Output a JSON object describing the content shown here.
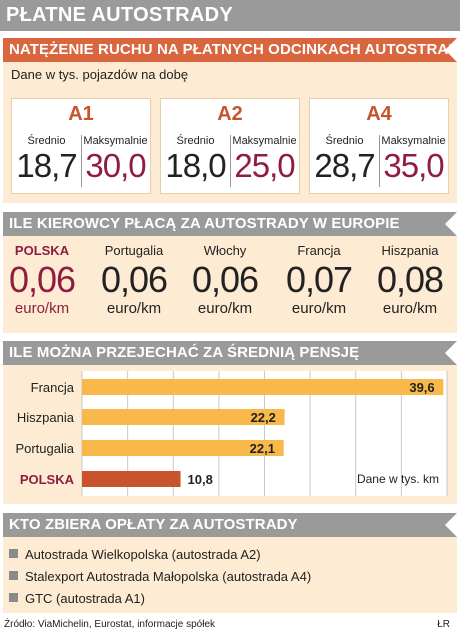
{
  "title": "PŁATNE AUTOSTRADY",
  "traffic": {
    "header": "NATĘŻENIE RUCHU NA PŁATNYCH ODCINKACH AUTOSTRAD",
    "subtitle": "Dane w tys. pojazdów na dobę",
    "avg_label": "Średnio",
    "max_label": "Maksymalnie",
    "roads": [
      {
        "name": "A1",
        "avg": "18,7",
        "max": "30,0"
      },
      {
        "name": "A2",
        "avg": "18,0",
        "max": "25,0"
      },
      {
        "name": "A4",
        "avg": "28,7",
        "max": "35,0"
      }
    ]
  },
  "prices": {
    "header": "ILE KIEROWCY PŁACĄ ZA AUTOSTRADY W EUROPIE",
    "unit": "euro/km",
    "countries": [
      {
        "name": "POLSKA",
        "price": "0,06"
      },
      {
        "name": "Portugalia",
        "price": "0,06"
      },
      {
        "name": "Włochy",
        "price": "0,06"
      },
      {
        "name": "Francja",
        "price": "0,07"
      },
      {
        "name": "Hiszpania",
        "price": "0,08"
      }
    ]
  },
  "chart_data": {
    "type": "bar",
    "orientation": "horizontal",
    "title": "ILE MOŻNA PRZEJECHAĆ ZA ŚREDNIĄ PENSJĘ",
    "categories": [
      "Francja",
      "Hiszpania",
      "Portugalia",
      "POLSKA"
    ],
    "values": [
      39.6,
      22.2,
      22.1,
      10.8
    ],
    "value_labels": [
      "39,6",
      "22,2",
      "22,1",
      "10,8"
    ],
    "note": "Dane w tys. km",
    "xlim": [
      0,
      40
    ],
    "grid": true,
    "colors": {
      "bar": "#f8b94a",
      "highlight": "#c8532c"
    }
  },
  "collectors": {
    "header": "KTO ZBIERA OPŁATY ZA AUTOSTRADY",
    "items": [
      "Autostrada Wielkopolska (autostrada A2)",
      "Stalexport Autostrada Małopolska (autostrada A4)",
      "GTC (autostrada A1)"
    ]
  },
  "footer": {
    "source": "Źródło: ViaMichelin, Eurostat, informacje spółek",
    "author": "ŁR"
  },
  "colors": {
    "accent": "#d9663e",
    "header_gray": "#9a9a9a",
    "panel_bg": "#fdebd3",
    "highlight": "#8f1d3f"
  }
}
